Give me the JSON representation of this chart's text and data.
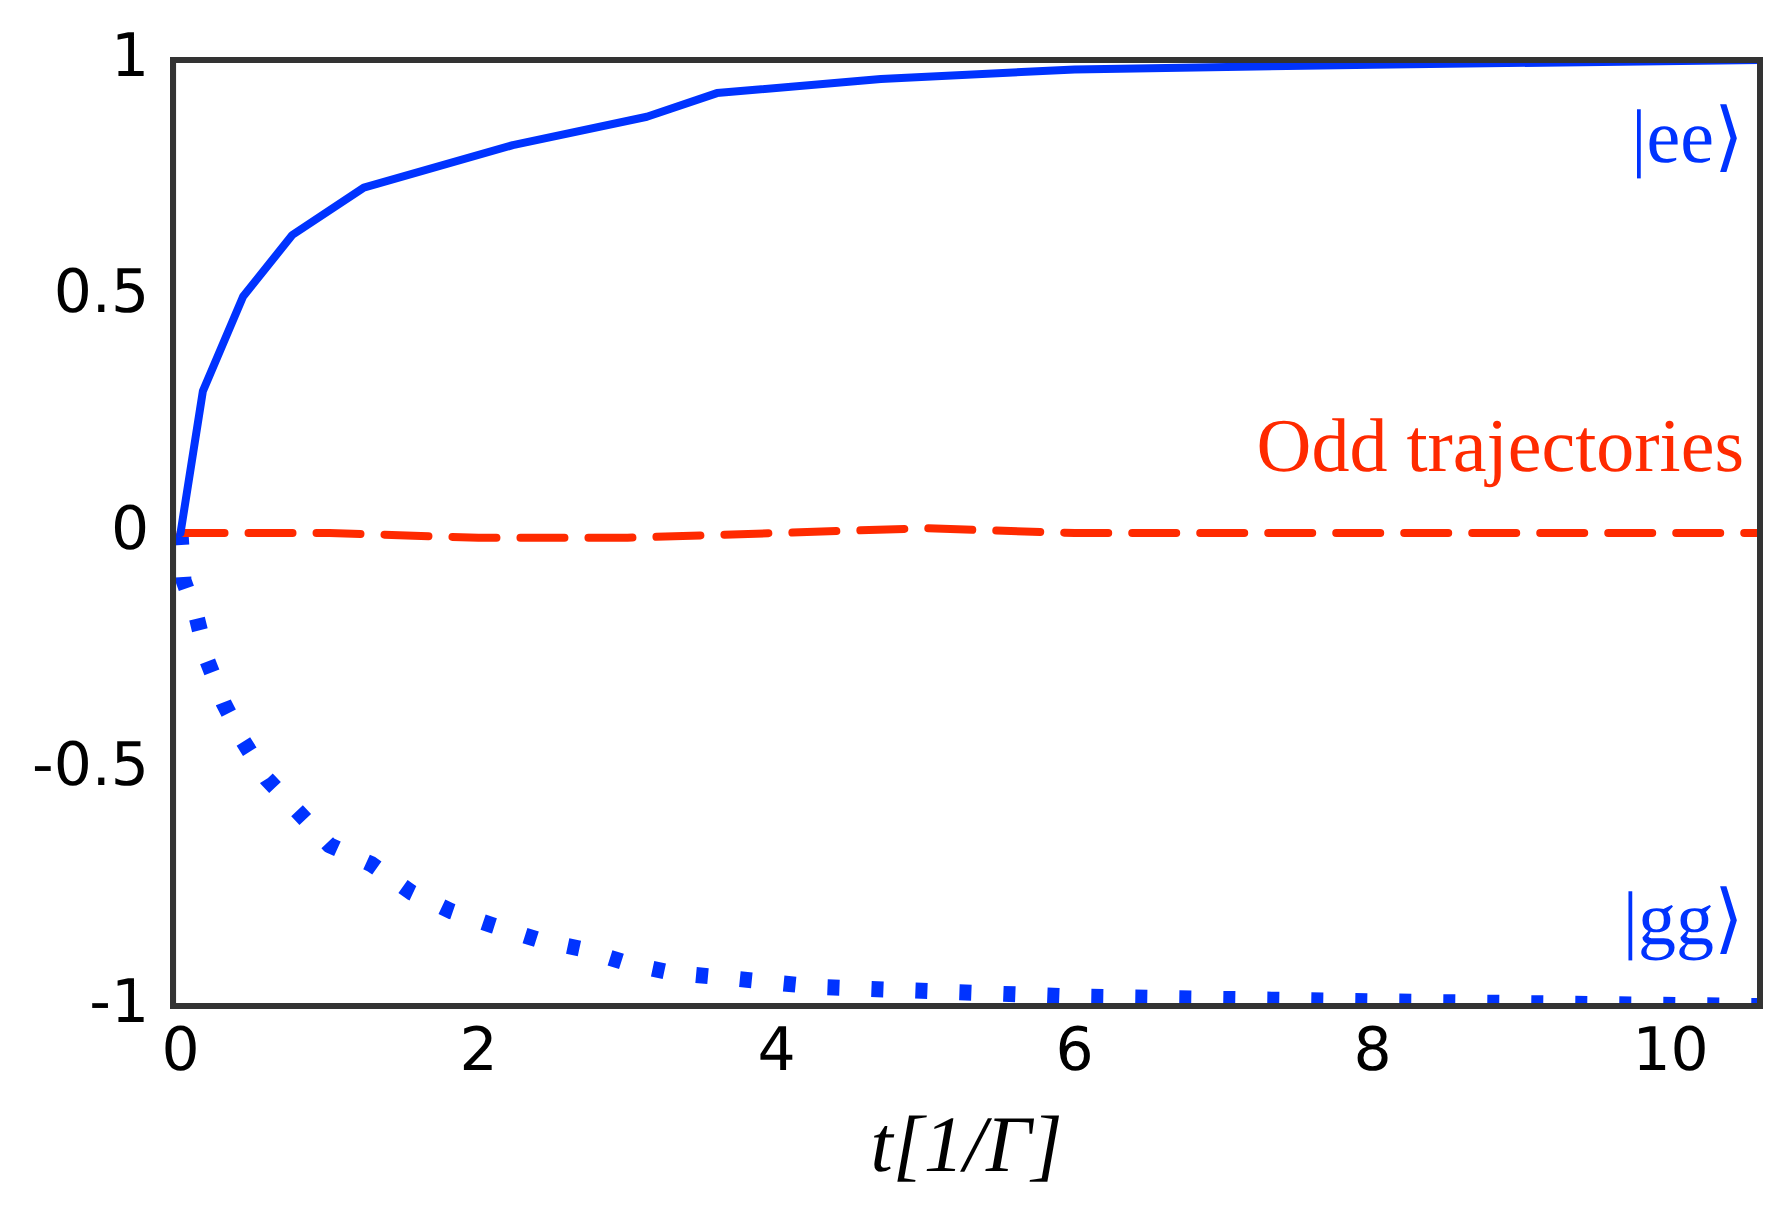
{
  "chart_data": {
    "type": "line",
    "xlabel": "t[1/Γ]",
    "xlim": [
      -0.05,
      10.6
    ],
    "xticks": [
      0,
      2,
      4,
      6,
      8,
      10
    ],
    "ylim": [
      -1,
      1
    ],
    "yticks": [
      1,
      0.5,
      0,
      {
        "value": -0.5,
        "label": "-0.5"
      },
      -1
    ],
    "grid": false,
    "legend": false,
    "series": [
      {
        "name": "|ee⟩",
        "color": "#0033ff",
        "line_style": "solid",
        "x": [
          0,
          0.15,
          0.42,
          0.75,
          1.23,
          2.23,
          3.13,
          3.6,
          4.7,
          6,
          8,
          10.6
        ],
        "values": [
          0,
          0.3,
          0.5,
          0.63,
          0.73,
          0.82,
          0.88,
          0.93,
          0.96,
          0.98,
          0.99,
          1
        ]
      },
      {
        "name": "Odd trajectories",
        "color": "#ff2a00",
        "line_style": "dashed",
        "x": [
          0,
          1,
          2,
          3,
          4,
          5,
          6,
          8,
          10.6
        ],
        "values": [
          0,
          0,
          -0.01,
          -0.01,
          0,
          0.01,
          0,
          0,
          0
        ]
      },
      {
        "name": "|gg⟩",
        "color": "#0033ff",
        "line_style": "dotted",
        "x": [
          0,
          0.02,
          0.11,
          0.18,
          0.29,
          0.42,
          0.58,
          0.79,
          1,
          1.28,
          1.55,
          1.82,
          2.1,
          2.4,
          2.7,
          3,
          3.3,
          3.65,
          3.97,
          4.3,
          6,
          8,
          10.6
        ],
        "values": [
          0,
          -0.1,
          -0.18,
          -0.27,
          -0.36,
          -0.44,
          -0.52,
          -0.59,
          -0.66,
          -0.7,
          -0.76,
          -0.8,
          -0.83,
          -0.86,
          -0.88,
          -0.91,
          -0.93,
          -0.94,
          -0.95,
          -0.96,
          -0.98,
          -0.99,
          -1
        ]
      }
    ]
  }
}
